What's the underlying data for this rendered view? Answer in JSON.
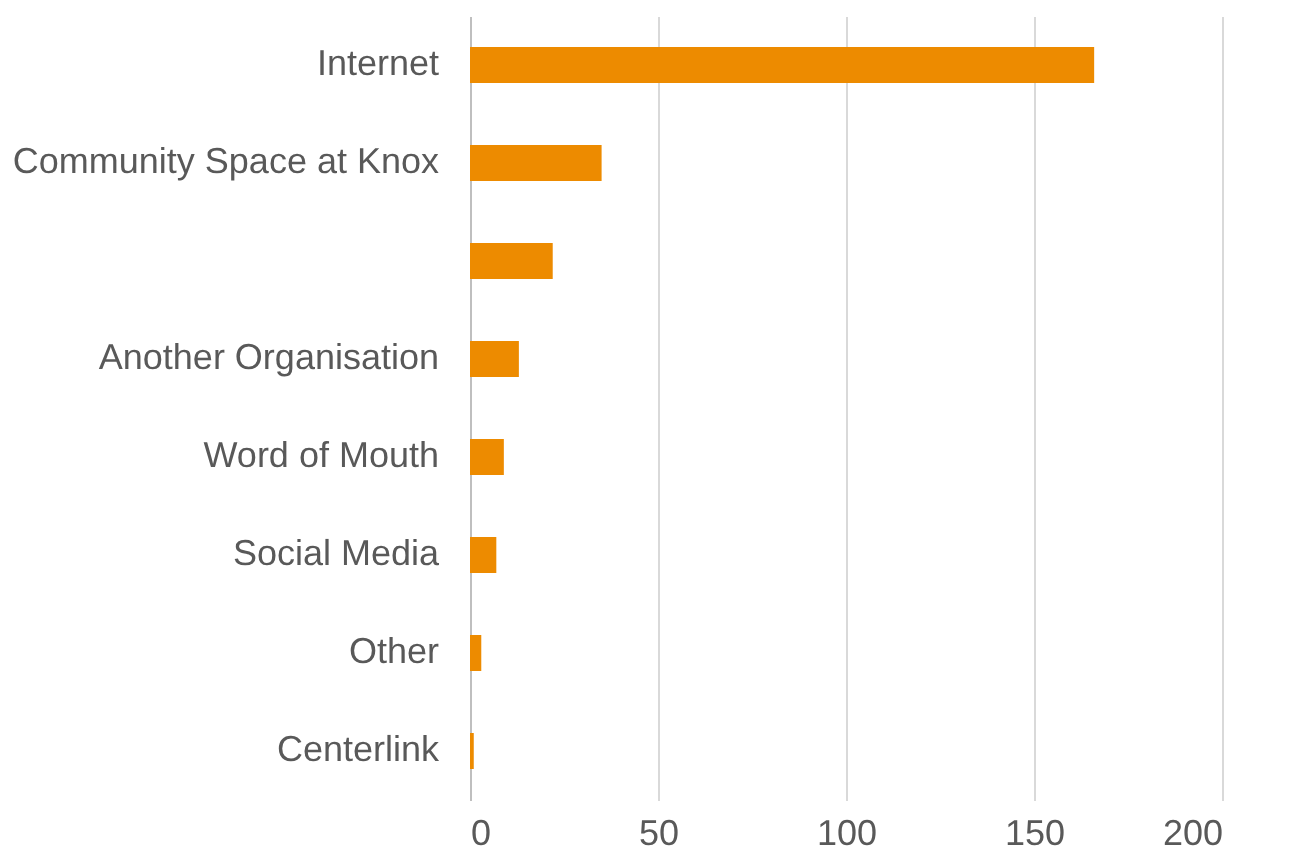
{
  "chart_data": {
    "type": "bar",
    "orientation": "horizontal",
    "categories": [
      "Internet",
      "Community Space at Knox",
      null,
      "Another Organisation",
      "Word of Mouth",
      "Social Media",
      "Other",
      "Centerlink"
    ],
    "values": [
      166,
      35,
      22,
      13,
      9,
      7,
      3,
      1
    ],
    "color": "#ed8b00",
    "xlim": [
      0,
      200
    ],
    "xticks": [
      0,
      50,
      100,
      150,
      200
    ],
    "grid": "x"
  }
}
